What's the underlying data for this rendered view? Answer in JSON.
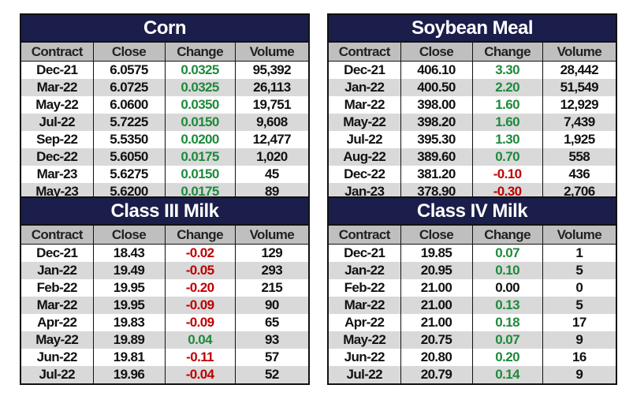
{
  "colors": {
    "title_bg": "#1b1e4b",
    "positive": "#1e8a3c",
    "negative": "#c00000"
  },
  "headers": [
    "Contract",
    "Close",
    "Change",
    "Volume"
  ],
  "tables": [
    {
      "title": "Corn",
      "rows": [
        [
          "Dec-21",
          "6.0575",
          "0.0325",
          "95,392"
        ],
        [
          "Mar-22",
          "6.0725",
          "0.0325",
          "26,113"
        ],
        [
          "May-22",
          "6.0600",
          "0.0350",
          "19,751"
        ],
        [
          "Jul-22",
          "5.7225",
          "0.0150",
          "9,608"
        ],
        [
          "Sep-22",
          "5.5350",
          "0.0200",
          "12,477"
        ],
        [
          "Dec-22",
          "5.6050",
          "0.0175",
          "1,020"
        ],
        [
          "Mar-23",
          "5.6275",
          "0.0150",
          "45"
        ],
        [
          "May-23",
          "5.6200",
          "0.0175",
          "89"
        ]
      ]
    },
    {
      "title": "Soybean Meal",
      "rows": [
        [
          "Dec-21",
          "406.10",
          "3.30",
          "28,442"
        ],
        [
          "Jan-22",
          "400.50",
          "2.20",
          "51,549"
        ],
        [
          "Mar-22",
          "398.00",
          "1.60",
          "12,929"
        ],
        [
          "May-22",
          "398.20",
          "1.60",
          "7,439"
        ],
        [
          "Jul-22",
          "395.30",
          "1.30",
          "1,925"
        ],
        [
          "Aug-22",
          "389.60",
          "0.70",
          "558"
        ],
        [
          "Dec-22",
          "381.20",
          "-0.10",
          "436"
        ],
        [
          "Jan-23",
          "378.90",
          "-0.30",
          "2,706"
        ]
      ]
    },
    {
      "title": "Class III Milk",
      "rows": [
        [
          "Dec-21",
          "18.43",
          "-0.02",
          "129"
        ],
        [
          "Jan-22",
          "19.49",
          "-0.05",
          "293"
        ],
        [
          "Feb-22",
          "19.95",
          "-0.20",
          "215"
        ],
        [
          "Mar-22",
          "19.95",
          "-0.09",
          "90"
        ],
        [
          "Apr-22",
          "19.83",
          "-0.09",
          "65"
        ],
        [
          "May-22",
          "19.89",
          "0.04",
          "93"
        ],
        [
          "Jun-22",
          "19.81",
          "-0.11",
          "57"
        ],
        [
          "Jul-22",
          "19.96",
          "-0.04",
          "52"
        ]
      ]
    },
    {
      "title": "Class IV Milk",
      "rows": [
        [
          "Dec-21",
          "19.85",
          "0.07",
          "1"
        ],
        [
          "Jan-22",
          "20.95",
          "0.10",
          "5"
        ],
        [
          "Feb-22",
          "21.00",
          "0.00",
          "0"
        ],
        [
          "Mar-22",
          "21.00",
          "0.13",
          "5"
        ],
        [
          "Apr-22",
          "21.00",
          "0.18",
          "17"
        ],
        [
          "May-22",
          "20.75",
          "0.07",
          "9"
        ],
        [
          "Jun-22",
          "20.80",
          "0.20",
          "16"
        ],
        [
          "Jul-22",
          "20.79",
          "0.14",
          "9"
        ]
      ]
    }
  ]
}
